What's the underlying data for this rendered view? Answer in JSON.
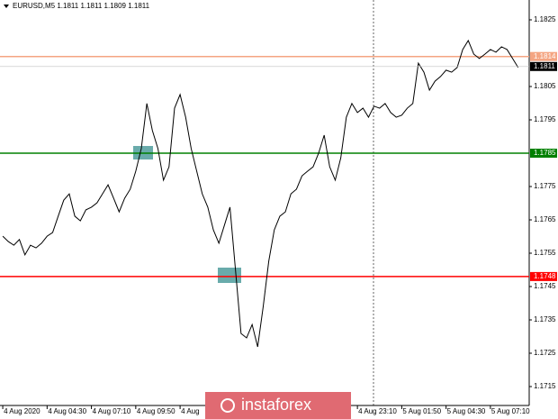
{
  "chart_data": {
    "type": "line",
    "title": "EURUSD,M5  1.1811 1.1811 1.1809 1.1811",
    "color": "#000000",
    "values": [
      1.17601,
      1.17585,
      1.17574,
      1.17591,
      1.17545,
      1.17574,
      1.17566,
      1.1758,
      1.17601,
      1.17612,
      1.17661,
      1.17709,
      1.17728,
      1.17661,
      1.17647,
      1.1768,
      1.17688,
      1.17701,
      1.17728,
      1.17755,
      1.17715,
      1.17674,
      1.17715,
      1.17742,
      1.17796,
      1.17864,
      1.17999,
      1.17918,
      1.17864,
      1.17769,
      1.17809,
      1.17985,
      1.18026,
      1.17958,
      1.17864,
      1.17796,
      1.17728,
      1.17688,
      1.1762,
      1.1758,
      1.17634,
      1.17688,
      1.17499,
      1.17309,
      1.17296,
      1.17336,
      1.17269,
      1.1739,
      1.17526,
      1.1762,
      1.17661,
      1.17674,
      1.17728,
      1.17742,
      1.17782,
      1.17796,
      1.17809,
      1.1785,
      1.17904,
      1.17809,
      1.17769,
      1.17836,
      1.17958,
      1.17999,
      1.17972,
      1.17985,
      1.17958,
      1.17991,
      1.17985,
      1.17999,
      1.17972,
      1.17958,
      1.17964,
      1.17985,
      1.17999,
      1.1812,
      1.18093,
      1.18039,
      1.18066,
      1.1808,
      1.18099,
      1.18093,
      1.18107,
      1.18161,
      1.18188,
      1.18147,
      1.18134,
      1.18147,
      1.18161,
      1.18153,
      1.18169,
      1.18161,
      1.18134,
      1.18107
    ],
    "xlim": [
      -0.5,
      95
    ],
    "xticks": [
      {
        "value": 0,
        "label": "4 Aug 2020"
      },
      {
        "value": 8,
        "label": "4 Aug 04:30"
      },
      {
        "value": 16,
        "label": "4 Aug 07:10"
      },
      {
        "value": 24,
        "label": "4 Aug 09:50"
      },
      {
        "value": 32,
        "label": "4 Aug"
      },
      {
        "value": 64,
        "label": "4 Aug 23:10"
      },
      {
        "value": 72,
        "label": "5 Aug 01:50"
      },
      {
        "value": 80,
        "label": "5 Aug 04:30"
      },
      {
        "value": 88,
        "label": "5 Aug 07:10"
      }
    ],
    "ylim": [
      1.1709,
      1.1829
    ],
    "yticks": [
      1.1825,
      1.1805,
      1.1795,
      1.1775,
      1.1765,
      1.1755,
      1.1745,
      1.1735,
      1.1725,
      1.1715
    ],
    "levels": [
      {
        "value": 1.1814,
        "color": "#f4a582"
      },
      {
        "value": 1.1785,
        "color": "#008000"
      },
      {
        "value": 1.1748,
        "color": "#ff0000"
      }
    ],
    "last_price": 1.1811,
    "watermark": "instaforex"
  }
}
